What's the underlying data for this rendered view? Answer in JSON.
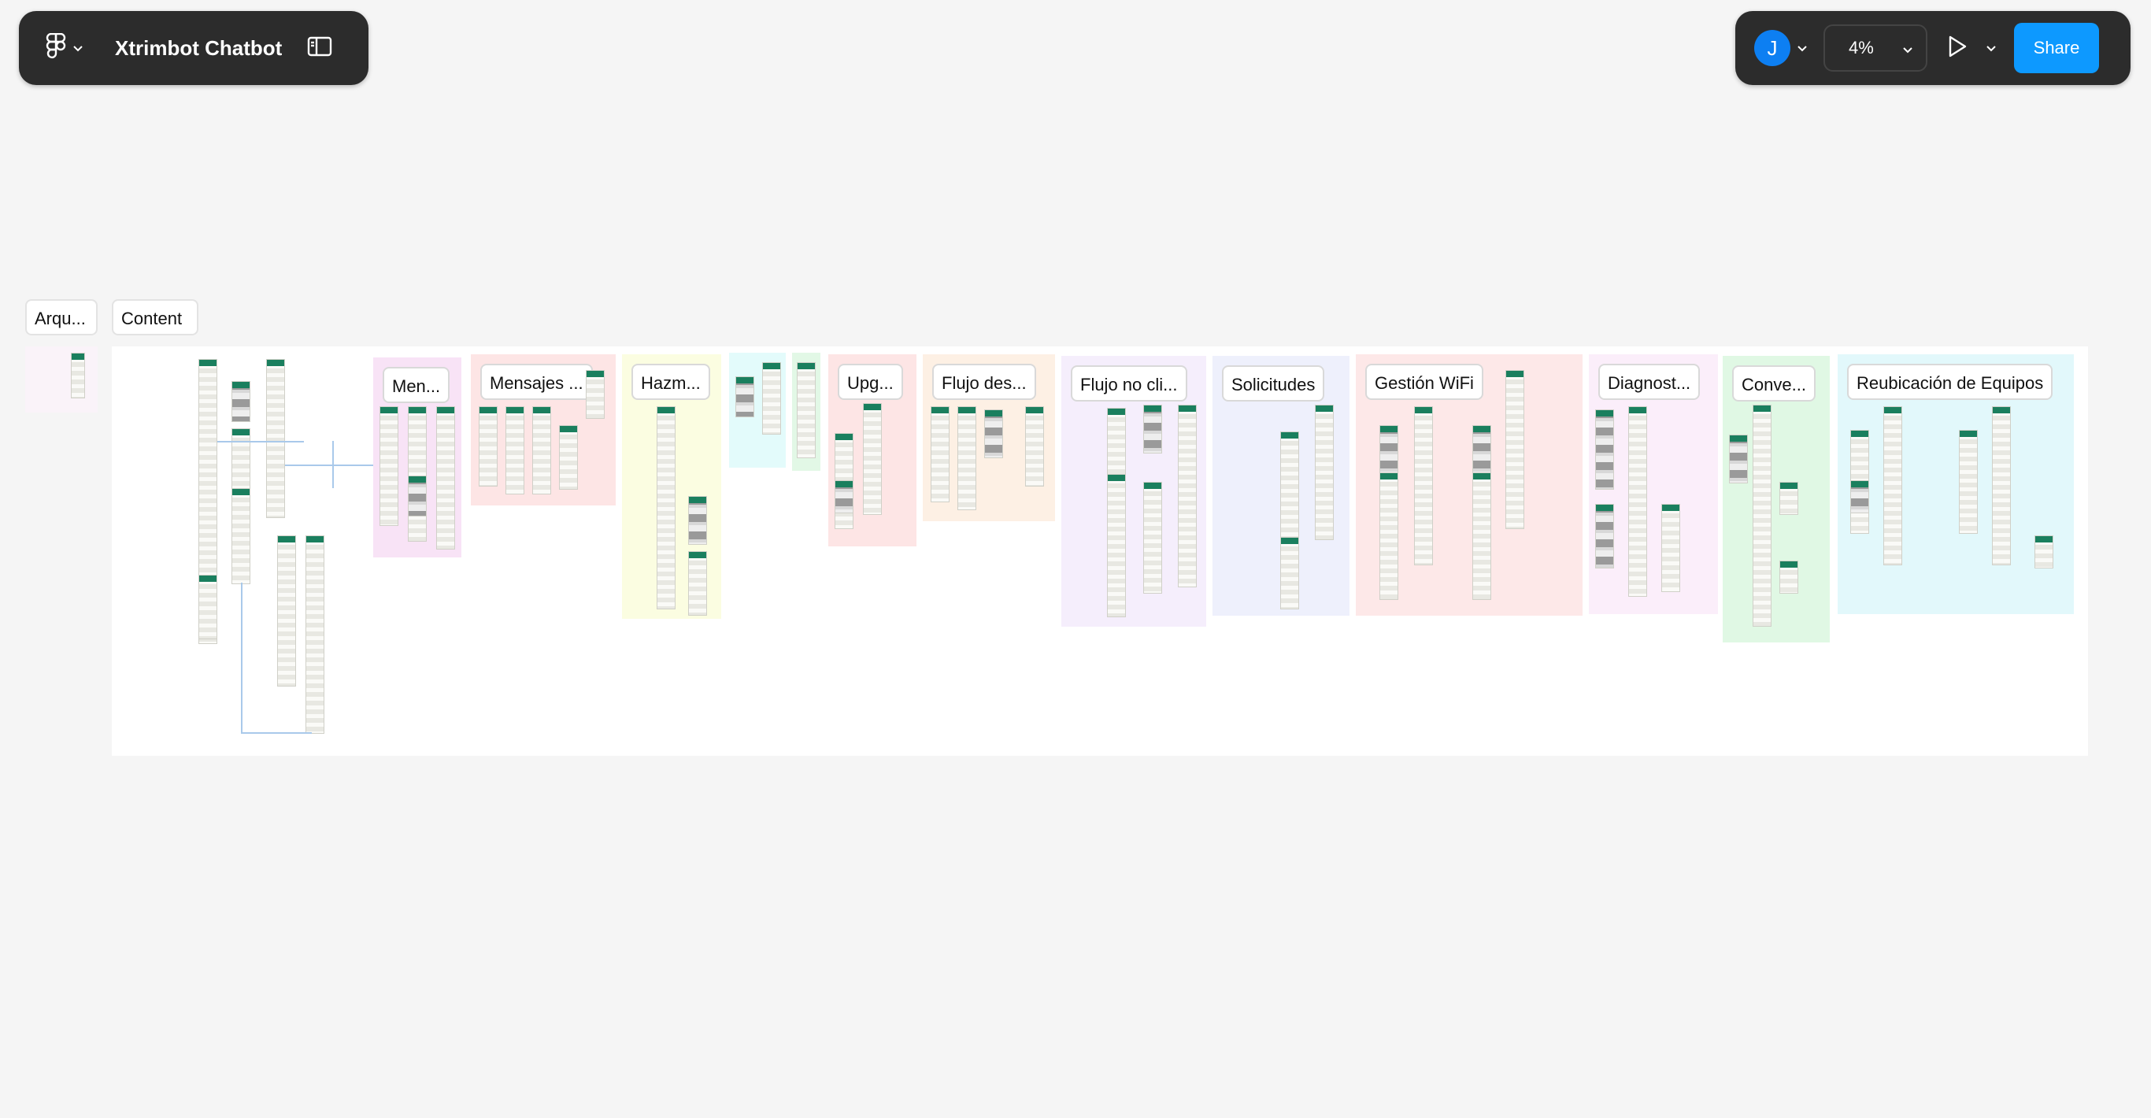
{
  "header": {
    "title": "Xtrimbot Chatbot",
    "menu_icon": "figma-logo-icon",
    "panel_icon": "sidebar-toggle-icon"
  },
  "toolbar": {
    "avatar_initial": "J",
    "zoom": "4%",
    "share_label": "Share",
    "accent_color": "#0d99ff"
  },
  "canvas": {
    "top_labels": [
      "Arqu...",
      "Content"
    ],
    "sections": [
      {
        "label": "Men...",
        "color": "#f8e3f6"
      },
      {
        "label": "Mensajes ...",
        "color": "#fde5e5"
      },
      {
        "label": "Hazm...",
        "color": "#fbfde1"
      },
      {
        "label": "",
        "color": "#e3fbfb"
      },
      {
        "label": "",
        "color": "#e2f8e6"
      },
      {
        "label": "Upg...",
        "color": "#fde5e5"
      },
      {
        "label": "Flujo des...",
        "color": "#fdf0e4"
      },
      {
        "label": "Flujo no cli...",
        "color": "#f5eefc"
      },
      {
        "label": "Solicitudes",
        "color": "#eef0fc"
      },
      {
        "label": "Gestión WiFi",
        "color": "#fde8e8"
      },
      {
        "label": "Diagnost...",
        "color": "#fbeefa"
      },
      {
        "label": "Conve...",
        "color": "#e0f8e4"
      },
      {
        "label": "Reubicación de Equipos",
        "color": "#e2f8fb"
      }
    ]
  }
}
